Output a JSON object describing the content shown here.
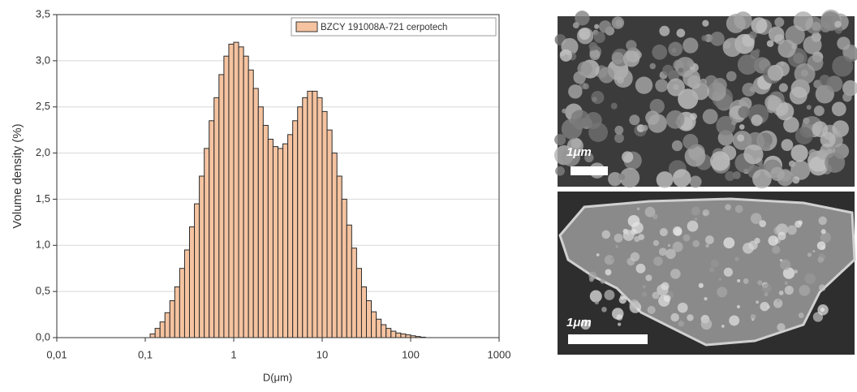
{
  "chart_data": {
    "type": "histogram",
    "x_label": "D(μm)",
    "y_label": "Volume density (%)",
    "log_x": true,
    "grid": true,
    "legend_position": "upper-right",
    "series": [
      {
        "name": "BZCY 191008A-721  cerpotech",
        "color": "#f5c3a0",
        "bins": [
          0.1136,
          0.1292,
          0.1468,
          0.1668,
          0.1896,
          0.2154,
          0.2448,
          0.2783,
          0.3162,
          0.3594,
          0.4084,
          0.4642,
          0.5275,
          0.5995,
          0.6813,
          0.7743,
          0.8799,
          1,
          1.136,
          1.292,
          1.468,
          1.668,
          1.896,
          2.154,
          2.448,
          2.783,
          3.162,
          3.594,
          4.084,
          4.642,
          5.275,
          5.995,
          6.813,
          7.743,
          8.799,
          10,
          11.36,
          12.92,
          14.68,
          16.68,
          18.96,
          21.54,
          24.48,
          27.83,
          31.62,
          35.94,
          40.84,
          46.42,
          52.75,
          59.95,
          68.13,
          77.43,
          87.99,
          100,
          113.6,
          129.2,
          146.8
        ],
        "values": [
          0.04,
          0.1,
          0.17,
          0.27,
          0.4,
          0.55,
          0.75,
          0.95,
          1.2,
          1.45,
          1.75,
          2.05,
          2.35,
          2.6,
          2.85,
          3.05,
          3.18,
          3.2,
          3.15,
          3.05,
          2.9,
          2.7,
          2.5,
          2.3,
          2.15,
          2.07,
          2.05,
          2.1,
          2.2,
          2.35,
          2.5,
          2.6,
          2.67,
          2.67,
          2.6,
          2.45,
          2.25,
          2.0,
          1.75,
          1.5,
          1.22,
          0.97,
          0.75,
          0.55,
          0.4,
          0.28,
          0.2,
          0.14,
          0.1,
          0.07,
          0.05,
          0.04,
          0.03,
          0.02,
          0.012,
          0.005
        ]
      }
    ],
    "xlim": [
      0.01,
      1000
    ],
    "xticks": [
      {
        "value": 0.01,
        "label": "0,01"
      },
      {
        "value": 0.1,
        "label": "0,1"
      },
      1,
      10,
      100,
      1000
    ],
    "ylim": [
      0,
      3.5
    ],
    "yticks": [
      {
        "value": 0,
        "label": "0,0"
      },
      {
        "value": 0.5,
        "label": "0,5"
      },
      {
        "value": 1,
        "label": "1,0"
      },
      {
        "value": 1.5,
        "label": "1,5"
      },
      {
        "value": 2,
        "label": "2,0"
      },
      {
        "value": 2.5,
        "label": "2,5"
      },
      {
        "value": 3,
        "label": "3,0"
      },
      {
        "value": 3.5,
        "label": "3,5"
      }
    ]
  },
  "images": [
    {
      "scale_label": "1μm"
    },
    {
      "scale_label": "1μm"
    }
  ]
}
